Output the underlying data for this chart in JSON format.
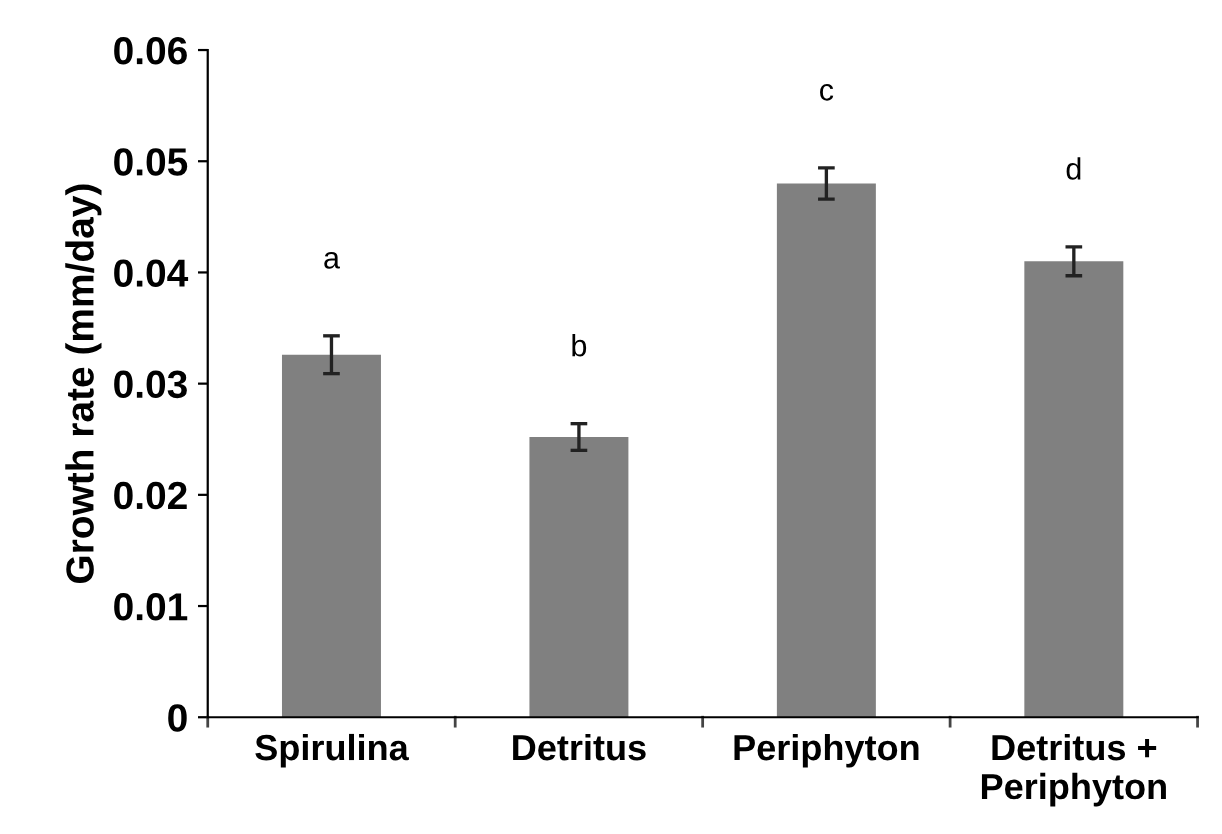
{
  "chart_data": {
    "type": "bar",
    "ylabel": "Growth rate (mm/day)",
    "categories": [
      "Spirulina",
      "Detritus",
      "Periphyton",
      "Detritus +\nPeriphyton"
    ],
    "values": [
      0.0326,
      0.0252,
      0.048,
      0.041
    ],
    "errors": [
      0.0017,
      0.0012,
      0.0014,
      0.0013
    ],
    "color": "#808080",
    "ylim": [
      0,
      0.06
    ],
    "yticks": [
      {
        "value": 0,
        "label": "0"
      },
      0.01,
      0.02,
      0.03,
      0.04,
      0.05,
      0.06
    ],
    "grid": false,
    "legend": false,
    "annotations": [
      "a",
      "b",
      "c",
      "d"
    ]
  }
}
